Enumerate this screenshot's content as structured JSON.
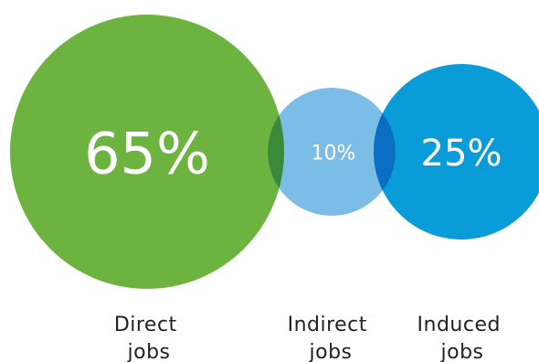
{
  "chart_data": {
    "type": "bubble",
    "title": "",
    "categories": [
      {
        "name": "Direct jobs",
        "label_lines": [
          "Direct",
          "jobs"
        ],
        "value": 65,
        "value_label": "65%",
        "color": "#6db33f"
      },
      {
        "name": "Indirect jobs",
        "label_lines": [
          "Indirect",
          "jobs"
        ],
        "value": 10,
        "value_label": "10%",
        "color": "#7bbde6"
      },
      {
        "name": "Induced jobs",
        "label_lines": [
          "Induced",
          "jobs"
        ],
        "value": 25,
        "value_label": "25%",
        "color": "#0a9cd8"
      }
    ],
    "overlap_colors": {
      "direct_indirect": "#3a8a3a",
      "indirect_induced": "#0a6fc2"
    }
  }
}
